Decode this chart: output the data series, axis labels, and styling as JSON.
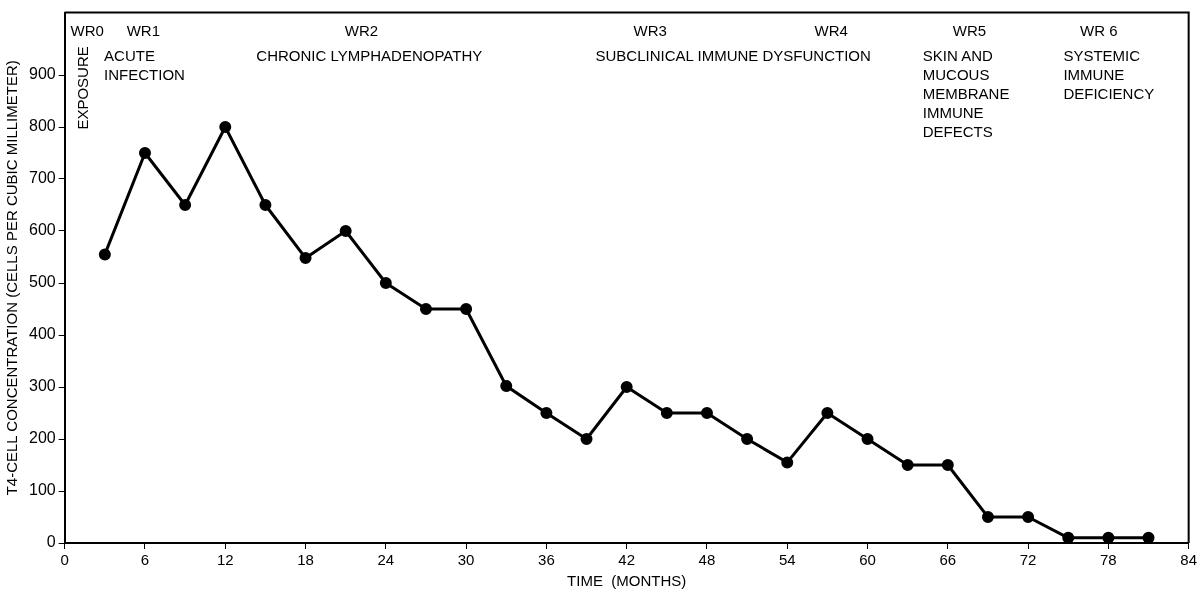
{
  "chart_data": {
    "type": "line",
    "xlabel": "TIME  (MONTHS)",
    "ylabel": "T4-CELL CONCENTRATION (CELLS PER CUBIC MILLIMETER)",
    "x": [
      3,
      6,
      9,
      12,
      15,
      18,
      21,
      24,
      27,
      30,
      33,
      36,
      39,
      42,
      45,
      48,
      51,
      54,
      57,
      60,
      63,
      66,
      69,
      72,
      75,
      78,
      81
    ],
    "series": [
      {
        "color": "#000000",
        "values": [
          555,
          750,
          650,
          800,
          650,
          548,
          600,
          500,
          450,
          450,
          302,
          250,
          200,
          300,
          250,
          250,
          200,
          155,
          250,
          200,
          150,
          150,
          50,
          50,
          10,
          10,
          10
        ]
      }
    ],
    "xlim": [
      0,
      84
    ],
    "xticks": [
      0,
      6,
      12,
      18,
      24,
      30,
      36,
      42,
      48,
      54,
      60,
      66,
      72,
      78,
      84
    ],
    "ylim": [
      0,
      1020
    ],
    "yticks": [
      0,
      100,
      200,
      300,
      400,
      500,
      600,
      700,
      800,
      900
    ],
    "marker": "circle",
    "line_style": "solid",
    "legend": false,
    "grid": false,
    "annotations": [
      "WR0",
      "EXPOSURE",
      "WR1",
      "ACUTE\nINFECTION",
      "WR2",
      "CHRONIC LYMPHADENOPATHY",
      "WR3",
      "SUBCLINICAL IMMUNE DYSFUNCTION",
      "WR4",
      "WR5",
      "SKIN AND\nMUCOUS\nMEMBRANE\nIMMUNE\nDEFECTS",
      "WR 6",
      "SYSTEMIC\nIMMUNE\nDEFICIENCY"
    ]
  }
}
